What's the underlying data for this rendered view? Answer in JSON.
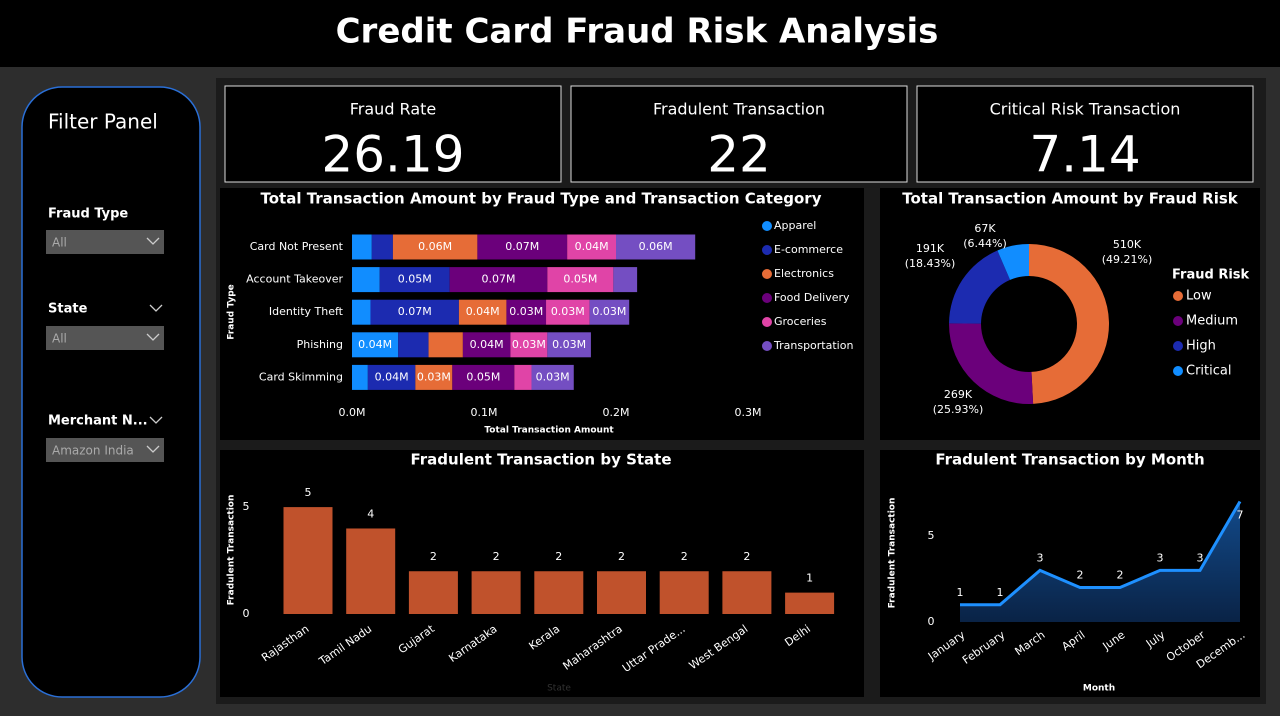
{
  "header": {
    "title": "Credit Card Fraud Risk Analysis"
  },
  "filters": {
    "title": "Filter Panel",
    "items": [
      {
        "label": "Fraud Type",
        "value": "All"
      },
      {
        "label": "State",
        "value": "All"
      },
      {
        "label": "Merchant N...",
        "value": "Amazon India"
      }
    ]
  },
  "kpis": [
    {
      "label": "Fraud Rate",
      "value": 26.19
    },
    {
      "label": "Fradulent Transaction",
      "value": 22
    },
    {
      "label": "Critical Risk Transaction",
      "value": 7.14
    }
  ],
  "chart_data": [
    {
      "type": "stacked_barh",
      "title": "Total Transaction Amount by Fraud Type and Transaction Category",
      "x_label": "Total Transaction Amount",
      "y_label": "Fraud Type",
      "categories": [
        "Card Not Present",
        "Account Takeover",
        "Identity Theft",
        "Phishing",
        "Card Skimming"
      ],
      "series": [
        {
          "name": "Apparel",
          "color": "#118dff",
          "values": [
            15000,
            21000,
            14000,
            35000,
            12000
          ],
          "value_labels": [
            null,
            null,
            null,
            "0.04M",
            null
          ]
        },
        {
          "name": "E-commerce",
          "color": "#1c2bb0",
          "values": [
            16000,
            53000,
            67000,
            23000,
            36000
          ],
          "value_labels": [
            null,
            "0.05M",
            "0.07M",
            null,
            "0.04M"
          ]
        },
        {
          "name": "Electronics",
          "color": "#e66c37",
          "values": [
            64000,
            null,
            36000,
            26000,
            28000
          ],
          "value_labels": [
            "0.06M",
            null,
            "0.04M",
            null,
            "0.03M"
          ]
        },
        {
          "name": "Food Delivery",
          "color": "#6b007b",
          "values": [
            68000,
            74000,
            30000,
            36000,
            47000
          ],
          "value_labels": [
            "0.07M",
            "0.07M",
            "0.03M",
            "0.04M",
            "0.05M"
          ]
        },
        {
          "name": "Groceries",
          "color": "#e044a7",
          "values": [
            37000,
            50000,
            33000,
            28000,
            13000
          ],
          "value_labels": [
            "0.04M",
            "0.05M",
            "0.03M",
            "0.03M",
            null
          ]
        },
        {
          "name": "Transportation",
          "color": "#744ec2",
          "values": [
            60000,
            18000,
            30000,
            33000,
            32000
          ],
          "value_labels": [
            "0.06M",
            null,
            "0.03M",
            "0.03M",
            "0.03M"
          ]
        }
      ],
      "xlim": [
        0,
        300000
      ],
      "xticks": [
        {
          "value": 0,
          "label": "0.0M"
        },
        {
          "value": 100000,
          "label": "0.1M"
        },
        {
          "value": 200000,
          "label": "0.2M"
        },
        {
          "value": 300000,
          "label": "0.3M"
        }
      ]
    },
    {
      "type": "donut",
      "title": "Total Transaction Amount by Fraud Risk",
      "legend_title": "Fraud Risk",
      "categories": [
        "Low",
        "Medium",
        "High",
        "Critical"
      ],
      "values": [
        510000,
        269000,
        191000,
        67000
      ],
      "value_labels": [
        "510K",
        "269K",
        "191K",
        "67K"
      ],
      "percent_labels": [
        "(49.21%)",
        "(25.93%)",
        "(18.43%)",
        "(6.44%)"
      ],
      "colors": [
        "#e66c37",
        "#6b007b",
        "#1c2bb0",
        "#118dff"
      ]
    },
    {
      "type": "bar",
      "title": "Fradulent Transaction by State",
      "x_label": "State",
      "y_label": "Fradulent Transaction",
      "categories": [
        "Rajasthan",
        "Tamil Nadu",
        "Gujarat",
        "Karnataka",
        "Kerala",
        "Maharashtra",
        "Uttar Prade...",
        "West Bengal",
        "Delhi"
      ],
      "values": [
        5,
        4,
        2,
        2,
        2,
        2,
        2,
        2,
        1
      ],
      "color": "#c0522c",
      "ylim": [
        0,
        5.8
      ],
      "yticks": [
        0,
        5
      ]
    },
    {
      "type": "area",
      "title": "Fradulent Transaction by Month",
      "x_label": "Month",
      "y_label": "Fradulent Transaction",
      "categories": [
        "January",
        "February",
        "March",
        "April",
        "June",
        "July",
        "October",
        "Decemb..."
      ],
      "values": [
        1,
        1,
        3,
        2,
        2,
        3,
        3,
        7
      ],
      "color": "#1e90ff",
      "ylim": [
        0,
        7.2
      ],
      "yticks": [
        0,
        5
      ]
    }
  ]
}
